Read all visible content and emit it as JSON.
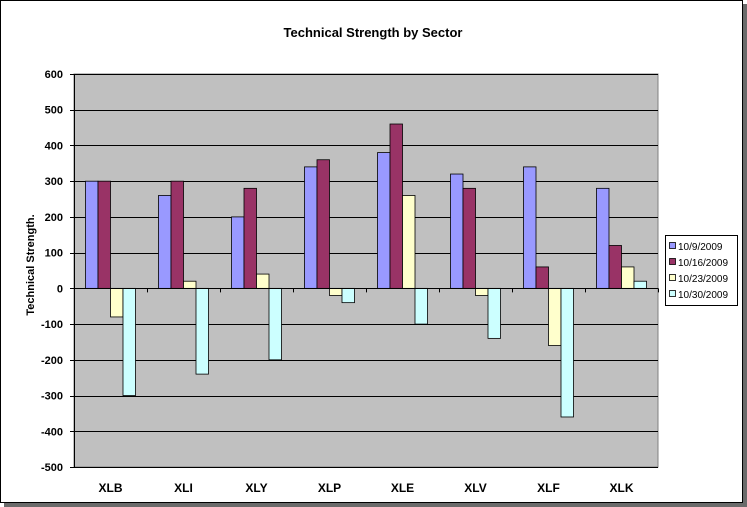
{
  "chart_data": {
    "type": "bar",
    "title": "Technical Strength by Sector",
    "xlabel": "",
    "ylabel": "Technical Strength.",
    "ylim": [
      -500,
      600
    ],
    "ytick_step": 100,
    "yticks": [
      "600",
      "500",
      "400",
      "300",
      "200",
      "100",
      "0",
      "-100",
      "-200",
      "-300",
      "-400",
      "-500"
    ],
    "grid": true,
    "legend_position": "right",
    "categories": [
      "XLB",
      "XLI",
      "XLY",
      "XLP",
      "XLE",
      "XLV",
      "XLF",
      "XLK"
    ],
    "series": [
      {
        "name": "10/9/2009",
        "color": "#9999ff",
        "values": [
          300,
          260,
          200,
          340,
          380,
          320,
          340,
          280
        ]
      },
      {
        "name": "10/16/2009",
        "color": "#993366",
        "values": [
          300,
          300,
          280,
          360,
          460,
          280,
          60,
          120
        ]
      },
      {
        "name": "10/23/2009",
        "color": "#ffffcc",
        "values": [
          -80,
          20,
          40,
          -20,
          260,
          -20,
          -160,
          60
        ]
      },
      {
        "name": "10/30/2009",
        "color": "#ccffff",
        "values": [
          -300,
          -240,
          -200,
          -40,
          -100,
          -140,
          -360,
          20
        ]
      }
    ],
    "colors": {
      "plot_background": "#c0c0c0",
      "gridline": "#000000",
      "bar_outline": "#000000"
    }
  }
}
